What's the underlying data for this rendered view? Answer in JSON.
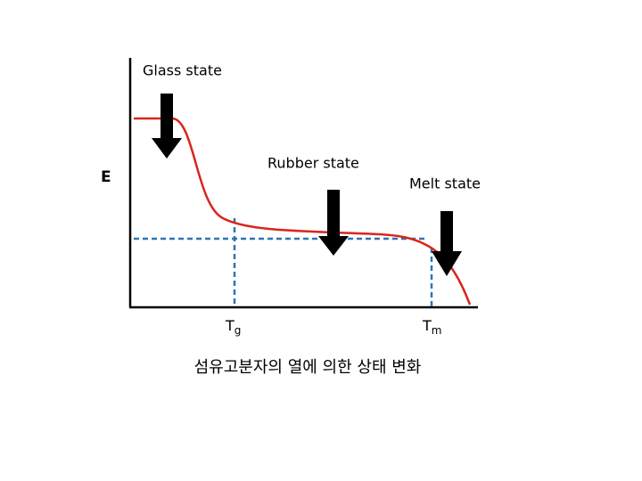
{
  "labels": {
    "glass": "Glass state",
    "rubber": "Rubber state",
    "melt": "Melt state",
    "y_axis": "E"
  },
  "temperatures": {
    "tg": {
      "main": "T",
      "sub": "g"
    },
    "tm": {
      "main": "T",
      "sub": "m"
    }
  },
  "caption": "섬유고분자의 열에 의한 상태 변화"
}
